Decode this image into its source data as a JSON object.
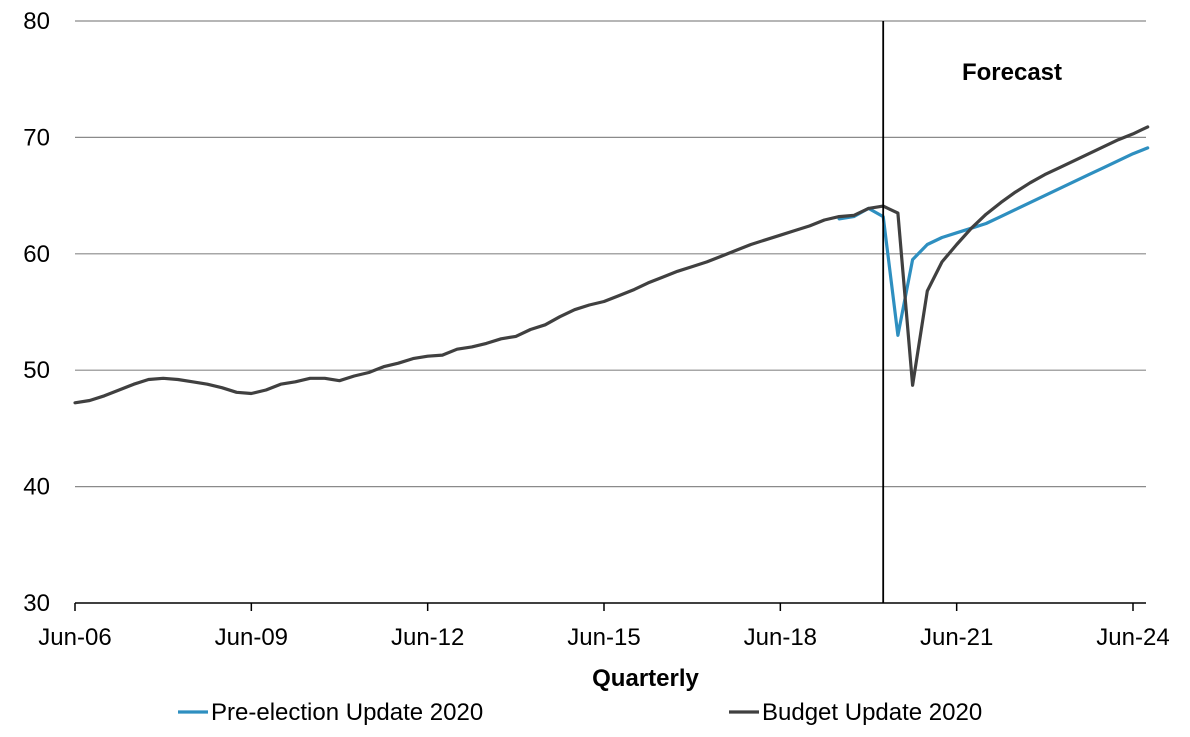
{
  "chart_data": {
    "type": "line",
    "title": "",
    "xlabel": "Quarterly",
    "ylabel": "",
    "ylim": [
      30,
      80
    ],
    "yticks": [
      30,
      40,
      50,
      60,
      70,
      80
    ],
    "x_tick_labels": [
      "Jun-06",
      "Jun-09",
      "Jun-12",
      "Jun-15",
      "Jun-18",
      "Jun-21",
      "Jun-24"
    ],
    "x_range": [
      "Jun-06",
      "Jun-24"
    ],
    "grid": "horizontal",
    "legend_position": "bottom",
    "annotations": [
      {
        "text": "Forecast",
        "x": "Mar-20",
        "type": "vertical-line"
      }
    ],
    "series": [
      {
        "name": "Pre-election Update 2020",
        "color": "#2e8fc0",
        "data": [
          [
            "Jun-19",
            63.0
          ],
          [
            "Sep-19",
            63.2
          ],
          [
            "Dec-19",
            63.9
          ],
          [
            "Mar-20",
            63.2
          ],
          [
            "Jun-20",
            53.0
          ],
          [
            "Sep-20",
            59.5
          ],
          [
            "Dec-20",
            60.8
          ],
          [
            "Mar-21",
            61.4
          ],
          [
            "Jun-21",
            61.8
          ],
          [
            "Sep-21",
            62.2
          ],
          [
            "Dec-21",
            62.6
          ],
          [
            "Mar-22",
            63.2
          ],
          [
            "Jun-22",
            63.8
          ],
          [
            "Sep-22",
            64.4
          ],
          [
            "Dec-22",
            65.0
          ],
          [
            "Mar-23",
            65.6
          ],
          [
            "Jun-23",
            66.2
          ],
          [
            "Sep-23",
            66.8
          ],
          [
            "Dec-23",
            67.4
          ],
          [
            "Mar-24",
            68.0
          ],
          [
            "Jun-24",
            68.6
          ],
          [
            "Sep-24",
            69.1
          ]
        ]
      },
      {
        "name": "Budget Update 2020",
        "color": "#404040",
        "data": [
          [
            "Jun-06",
            47.2
          ],
          [
            "Sep-06",
            47.4
          ],
          [
            "Dec-06",
            47.8
          ],
          [
            "Mar-07",
            48.3
          ],
          [
            "Jun-07",
            48.8
          ],
          [
            "Sep-07",
            49.2
          ],
          [
            "Dec-07",
            49.3
          ],
          [
            "Mar-08",
            49.2
          ],
          [
            "Jun-08",
            49.0
          ],
          [
            "Sep-08",
            48.8
          ],
          [
            "Dec-08",
            48.5
          ],
          [
            "Mar-09",
            48.1
          ],
          [
            "Jun-09",
            48.0
          ],
          [
            "Sep-09",
            48.3
          ],
          [
            "Dec-09",
            48.8
          ],
          [
            "Mar-10",
            49.0
          ],
          [
            "Jun-10",
            49.3
          ],
          [
            "Sep-10",
            49.3
          ],
          [
            "Dec-10",
            49.1
          ],
          [
            "Mar-11",
            49.5
          ],
          [
            "Jun-11",
            49.8
          ],
          [
            "Sep-11",
            50.3
          ],
          [
            "Dec-11",
            50.6
          ],
          [
            "Mar-12",
            51.0
          ],
          [
            "Jun-12",
            51.2
          ],
          [
            "Sep-12",
            51.3
          ],
          [
            "Dec-12",
            51.8
          ],
          [
            "Mar-13",
            52.0
          ],
          [
            "Jun-13",
            52.3
          ],
          [
            "Sep-13",
            52.7
          ],
          [
            "Dec-13",
            52.9
          ],
          [
            "Mar-14",
            53.5
          ],
          [
            "Jun-14",
            53.9
          ],
          [
            "Sep-14",
            54.6
          ],
          [
            "Dec-14",
            55.2
          ],
          [
            "Mar-15",
            55.6
          ],
          [
            "Jun-15",
            55.9
          ],
          [
            "Sep-15",
            56.4
          ],
          [
            "Dec-15",
            56.9
          ],
          [
            "Mar-16",
            57.5
          ],
          [
            "Jun-16",
            58.0
          ],
          [
            "Sep-16",
            58.5
          ],
          [
            "Dec-16",
            58.9
          ],
          [
            "Mar-17",
            59.3
          ],
          [
            "Jun-17",
            59.8
          ],
          [
            "Sep-17",
            60.3
          ],
          [
            "Dec-17",
            60.8
          ],
          [
            "Mar-18",
            61.2
          ],
          [
            "Jun-18",
            61.6
          ],
          [
            "Sep-18",
            62.0
          ],
          [
            "Dec-18",
            62.4
          ],
          [
            "Mar-19",
            62.9
          ],
          [
            "Jun-19",
            63.2
          ],
          [
            "Sep-19",
            63.3
          ],
          [
            "Dec-19",
            63.9
          ],
          [
            "Mar-20",
            64.1
          ],
          [
            "Jun-20",
            63.5
          ],
          [
            "Sep-20",
            48.7
          ],
          [
            "Dec-20",
            56.8
          ],
          [
            "Mar-21",
            59.3
          ],
          [
            "Jun-21",
            60.8
          ],
          [
            "Sep-21",
            62.2
          ],
          [
            "Dec-21",
            63.4
          ],
          [
            "Mar-22",
            64.4
          ],
          [
            "Jun-22",
            65.3
          ],
          [
            "Sep-22",
            66.1
          ],
          [
            "Dec-22",
            66.8
          ],
          [
            "Mar-23",
            67.4
          ],
          [
            "Jun-23",
            68.0
          ],
          [
            "Sep-23",
            68.6
          ],
          [
            "Dec-23",
            69.2
          ],
          [
            "Mar-24",
            69.8
          ],
          [
            "Jun-24",
            70.3
          ],
          [
            "Sep-24",
            70.9
          ]
        ]
      }
    ]
  }
}
